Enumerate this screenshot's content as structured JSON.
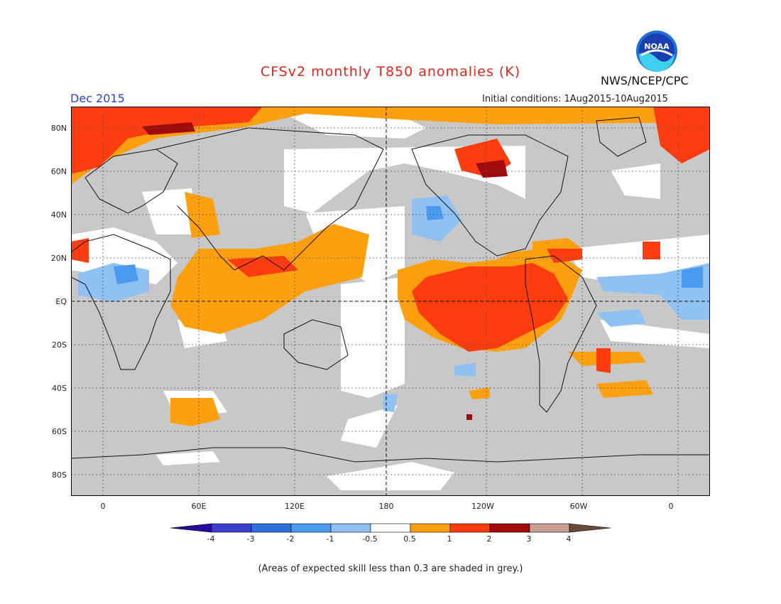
{
  "title": "CFSv2 monthly T850 anomalies (K)",
  "month": "Dec 2015",
  "agency": "NWS/NCEP/CPC",
  "logo_text": "NOAA",
  "initial_conditions": "Initial conditions: 1Aug2015-10Aug2015",
  "footnote": "(Areas of expected skill less than 0.3 are shaded in grey.)",
  "lat_labels": [
    "80N",
    "60N",
    "40N",
    "20N",
    "EQ",
    "20S",
    "40S",
    "60S",
    "80S"
  ],
  "lon_labels": [
    "0",
    "60E",
    "120E",
    "180",
    "120W",
    "60W",
    "0"
  ],
  "colorbar": {
    "labels": [
      "-4",
      "-3",
      "-2",
      "-1",
      "-0.5",
      "0.5",
      "1",
      "2",
      "3",
      "4"
    ],
    "colors": [
      "#2a0a9e",
      "#3b3fd0",
      "#2f6fdd",
      "#4a9af0",
      "#8fc1f2",
      "#ffffff",
      "#fda010",
      "#fd3c10",
      "#a00a0a",
      "#c9a092",
      "#6b4a3a"
    ]
  },
  "colors": {
    "grey": "#c8c8c8",
    "orange": "#fda010",
    "red": "#fd3c10",
    "darkred": "#a00a0a",
    "lightblue": "#8fc1f2",
    "blue": "#4a9af0"
  }
}
